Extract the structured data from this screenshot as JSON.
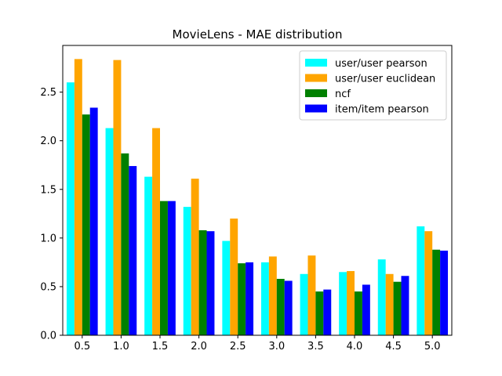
{
  "chart_data": {
    "type": "bar",
    "title": "MovieLens - MAE distribution",
    "xlabel": "",
    "ylabel": "",
    "categories": [
      "0.5",
      "1.0",
      "1.5",
      "2.0",
      "2.5",
      "3.0",
      "3.5",
      "4.0",
      "4.5",
      "5.0"
    ],
    "series": [
      {
        "name": "user/user pearson",
        "color": "#00ffff",
        "values": [
          2.6,
          2.13,
          1.63,
          1.32,
          0.97,
          0.75,
          0.63,
          0.65,
          0.78,
          1.12
        ]
      },
      {
        "name": "user/user euclidean",
        "color": "#ffa500",
        "values": [
          2.84,
          2.83,
          2.13,
          1.61,
          1.2,
          0.81,
          0.82,
          0.66,
          0.63,
          1.07
        ]
      },
      {
        "name": "ncf",
        "color": "#008000",
        "values": [
          2.27,
          1.87,
          1.38,
          1.08,
          0.74,
          0.58,
          0.45,
          0.45,
          0.55,
          0.88
        ]
      },
      {
        "name": "item/item pearson",
        "color": "#0000ff",
        "values": [
          2.34,
          1.74,
          1.38,
          1.07,
          0.75,
          0.56,
          0.47,
          0.52,
          0.61,
          0.87
        ]
      }
    ],
    "ylim": [
      0,
      2.98
    ],
    "yticks": [
      "0.0",
      "0.5",
      "1.0",
      "1.5",
      "2.0",
      "2.5"
    ],
    "grid": false,
    "legend_position": "top-right"
  }
}
